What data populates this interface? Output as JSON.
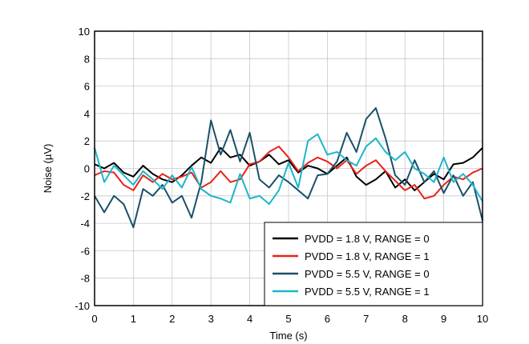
{
  "chart_data": {
    "type": "line",
    "xlabel": "Time (s)",
    "ylabel": "Noise (µV)",
    "xlim": [
      0,
      10
    ],
    "ylim": [
      -10,
      10
    ],
    "xticks": [
      0,
      1,
      2,
      3,
      4,
      5,
      6,
      7,
      8,
      9,
      10
    ],
    "yticks": [
      -10,
      -8,
      -6,
      -4,
      -2,
      0,
      2,
      4,
      6,
      8,
      10
    ],
    "grid": true,
    "legend_position": "bottom-right",
    "x": [
      0,
      0.25,
      0.5,
      0.75,
      1,
      1.25,
      1.5,
      1.75,
      2,
      2.25,
      2.5,
      2.75,
      3,
      3.25,
      3.5,
      3.75,
      4,
      4.25,
      4.5,
      4.75,
      5,
      5.25,
      5.5,
      5.75,
      6,
      6.25,
      6.5,
      6.75,
      7,
      7.25,
      7.5,
      7.75,
      8,
      8.25,
      8.5,
      8.75,
      9,
      9.25,
      9.5,
      9.75,
      10
    ],
    "series": [
      {
        "name": "PVDD = 1.8 V, RANGE = 0",
        "color": "#000000",
        "values": [
          0.3,
          0.0,
          0.4,
          -0.3,
          -0.6,
          0.2,
          -0.4,
          -0.8,
          -1.0,
          -0.5,
          0.2,
          0.8,
          0.4,
          1.5,
          0.8,
          1.0,
          0.2,
          0.5,
          1.0,
          0.3,
          0.6,
          -0.3,
          0.2,
          0.0,
          -0.4,
          0.2,
          0.8,
          -0.6,
          -1.2,
          -0.8,
          -0.2,
          -1.4,
          -0.8,
          -1.6,
          -1.0,
          -0.4,
          -0.8,
          0.3,
          0.4,
          0.8,
          1.5
        ]
      },
      {
        "name": "PVDD = 1.8 V, RANGE = 1",
        "color": "#e8221b",
        "values": [
          -0.5,
          -0.2,
          -0.3,
          -1.2,
          -1.6,
          -0.5,
          -1.0,
          -0.4,
          -0.8,
          -0.6,
          -0.3,
          -1.4,
          -1.0,
          -0.2,
          -1.0,
          -0.8,
          0.3,
          0.5,
          1.2,
          1.6,
          0.8,
          -0.2,
          0.4,
          0.8,
          0.5,
          0.0,
          0.6,
          -0.4,
          0.2,
          0.6,
          -0.2,
          -0.9,
          -1.6,
          -1.2,
          -2.2,
          -2.0,
          -1.2,
          -0.6,
          -0.8,
          -0.3,
          0.0
        ]
      },
      {
        "name": "PVDD = 5.5 V, RANGE = 0",
        "color": "#1a5068",
        "values": [
          -2.0,
          -3.2,
          -2.0,
          -2.6,
          -4.3,
          -1.5,
          -2.0,
          -1.2,
          -2.5,
          -2.0,
          -3.6,
          -1.0,
          3.5,
          1.0,
          2.8,
          0.5,
          2.6,
          -0.8,
          -1.4,
          -0.5,
          -1.0,
          -1.6,
          -2.2,
          -0.5,
          -0.4,
          0.5,
          2.6,
          1.2,
          3.6,
          4.4,
          2.2,
          -0.5,
          -1.2,
          0.6,
          -1.0,
          -0.2,
          -1.8,
          -0.5,
          -2.0,
          -1.0,
          -3.8
        ]
      },
      {
        "name": "PVDD = 5.5 V, RANGE = 1",
        "color": "#1db5c9",
        "values": [
          1.5,
          -1.0,
          0.2,
          -0.5,
          -1.2,
          -0.2,
          -0.8,
          -1.5,
          -0.5,
          -1.4,
          0.1,
          -1.5,
          -2.0,
          -2.2,
          -2.5,
          -0.4,
          -2.2,
          -2.0,
          -2.6,
          -1.6,
          0.4,
          -1.4,
          2.0,
          2.5,
          1.0,
          1.2,
          0.6,
          0.2,
          1.6,
          2.2,
          1.2,
          0.6,
          1.2,
          0.0,
          -0.4,
          -1.0,
          0.8,
          -1.0,
          -0.4,
          -1.2,
          -2.4
        ]
      }
    ]
  }
}
